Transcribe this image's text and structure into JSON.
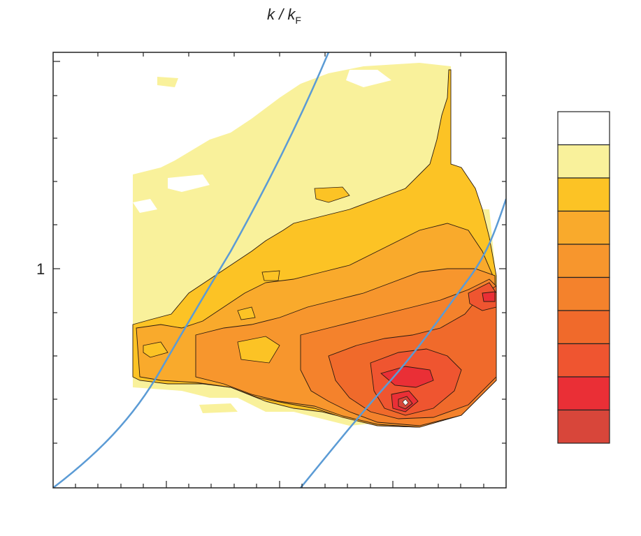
{
  "chart_data": {
    "type": "heatmap",
    "title": "",
    "top_axis_label": {
      "main": "k / k",
      "subscript": "F"
    },
    "xlabel": "",
    "ylabel": "",
    "y_tick_labels": [
      "1"
    ],
    "x_tick_labels": [
      "",
      ""
    ],
    "grid": false,
    "colorbar": {
      "placement": "right",
      "levels": 10,
      "colors": [
        "#ffffff",
        "#f9f19b",
        "#fcc325",
        "#f9aa2c",
        "#f7962d",
        "#f4822c",
        "#f06a2b",
        "#ef5530",
        "#ea2f36",
        "#d8463a"
      ]
    },
    "overlay_curves": {
      "count": 2,
      "color": "#5b9bd5",
      "description_note": ""
    }
  },
  "colors": {
    "curve": "#5b9bd5",
    "contour_line": "#2a1a10",
    "frame": "#222222"
  }
}
